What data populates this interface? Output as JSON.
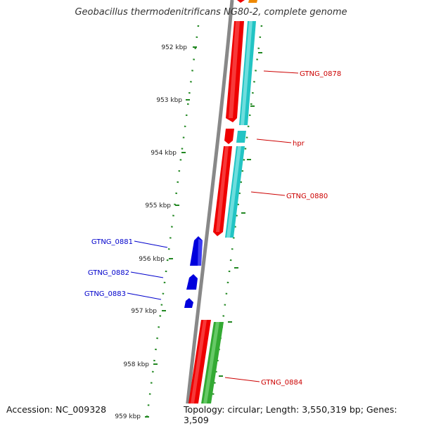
{
  "header": {
    "title": "Geobacillus thermodenitrificans NG80-2, complete genome"
  },
  "footer": {
    "accession": "Accession: NC_009328",
    "topology": "Topology: circular; Length: 3,550,319 bp; Genes: 3,509"
  },
  "ticks": [
    {
      "label": "952 kbp"
    },
    {
      "label": "953 kbp"
    },
    {
      "label": "954 kbp"
    },
    {
      "label": "955 kbp"
    },
    {
      "label": "956 kbp"
    },
    {
      "label": "957 kbp"
    },
    {
      "label": "958 kbp"
    },
    {
      "label": "959 kbp"
    }
  ],
  "genes": [
    {
      "name": "GTNG_0878",
      "strand": "forward"
    },
    {
      "name": "hpr",
      "strand": "forward"
    },
    {
      "name": "GTNG_0880",
      "strand": "forward"
    },
    {
      "name": "GTNG_0881",
      "strand": "reverse"
    },
    {
      "name": "GTNG_0882",
      "strand": "reverse"
    },
    {
      "name": "GTNG_0883",
      "strand": "reverse"
    },
    {
      "name": "GTNG_0884",
      "strand": "forward"
    }
  ],
  "colors": {
    "forward_cds": "#ee0000",
    "reverse_cds": "#0000dd",
    "forward_rna": "#22c4c4",
    "green_track": "#33aa33",
    "orange_feature": "#ee8800",
    "backbone": "#888888",
    "tick": "#228822",
    "forward_label": "#cc0000",
    "reverse_label": "#0000cc"
  }
}
